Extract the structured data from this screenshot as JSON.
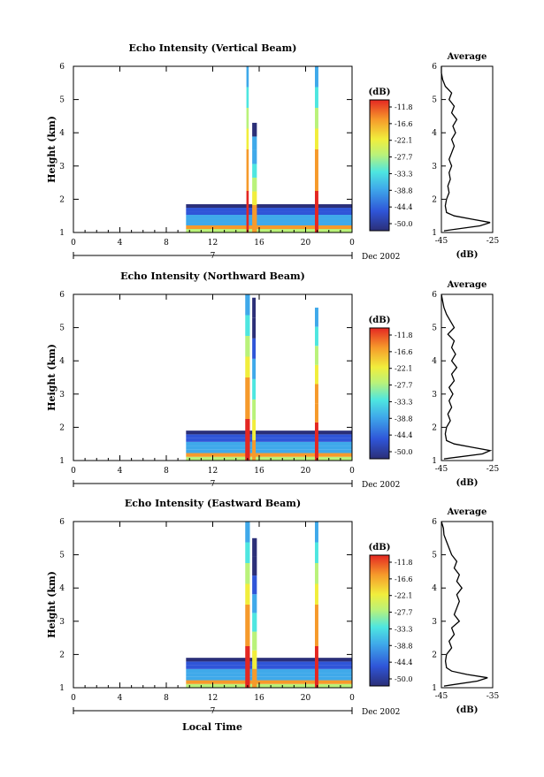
{
  "figure": {
    "xlabel_bottom": "Local Time"
  },
  "chart_data": [
    {
      "type": "heatmap",
      "title": "Echo Intensity (Vertical Beam)",
      "xlabel": "",
      "ylabel": "Height (km)",
      "xlim": [
        0,
        24
      ],
      "ylim": [
        1,
        6
      ],
      "xticks": [
        "0",
        "4",
        "8",
        "12",
        "16",
        "20",
        "0"
      ],
      "yticks": [
        "1",
        "2",
        "3",
        "4",
        "5",
        "6"
      ],
      "day_label": "7",
      "month_label": "Dec 2002",
      "colorbar": {
        "unit": "(dB)",
        "ticks": [
          "-11.8",
          "-16.6",
          "-22.1",
          "-27.7",
          "-33.3",
          "-38.8",
          "-44.4",
          "-50.0"
        ]
      },
      "echo_columns": [
        {
          "start_hr": 9.7,
          "end_hr": 24.0,
          "top_km": 1.85,
          "peak_db": -40
        },
        {
          "start_hr": 14.9,
          "end_hr": 15.1,
          "top_km": 6.0,
          "peak_db": -12
        },
        {
          "start_hr": 15.4,
          "end_hr": 15.8,
          "top_km": 4.3,
          "peak_db": -20
        },
        {
          "start_hr": 20.8,
          "end_hr": 21.1,
          "top_km": 6.0,
          "peak_db": -12
        }
      ],
      "profile": {
        "title": "Average",
        "xlabel": "(dB)",
        "xlim": [
          -45,
          -25
        ],
        "xticks": [
          "-45",
          "-25"
        ],
        "ylim": [
          1,
          6
        ],
        "yticks": [
          "1",
          "2",
          "3",
          "4",
          "5",
          "6"
        ],
        "height_km": [
          1.05,
          1.2,
          1.3,
          1.4,
          1.5,
          1.6,
          1.8,
          2.0,
          2.2,
          2.4,
          2.6,
          2.8,
          3.0,
          3.2,
          3.4,
          3.6,
          3.8,
          4.0,
          4.2,
          4.4,
          4.6,
          4.8,
          5.0,
          5.2,
          5.4,
          5.6,
          5.8,
          6.0
        ],
        "avg_db": [
          -44,
          -30,
          -26,
          -33,
          -40,
          -43,
          -43.5,
          -43,
          -42,
          -42.5,
          -41.5,
          -42,
          -41,
          -42,
          -41,
          -40,
          -41,
          -39.5,
          -40.5,
          -39,
          -41,
          -40,
          -42,
          -41,
          -43.5,
          -44.5,
          -45,
          -45
        ]
      }
    },
    {
      "type": "heatmap",
      "title": "Echo Intensity (Northward Beam)",
      "xlabel": "",
      "ylabel": "Height (km)",
      "xlim": [
        0,
        24
      ],
      "ylim": [
        1,
        6
      ],
      "xticks": [
        "0",
        "4",
        "8",
        "12",
        "16",
        "20",
        "0"
      ],
      "yticks": [
        "1",
        "2",
        "3",
        "4",
        "5",
        "6"
      ],
      "day_label": "7",
      "month_label": "Dec 2002",
      "colorbar": {
        "unit": "(dB)",
        "ticks": [
          "-11.8",
          "-16.6",
          "-22.1",
          "-27.7",
          "-33.3",
          "-38.8",
          "-44.4",
          "-50.0"
        ]
      },
      "echo_columns": [
        {
          "start_hr": 9.7,
          "end_hr": 24.0,
          "top_km": 1.9,
          "peak_db": -40
        },
        {
          "start_hr": 14.8,
          "end_hr": 15.2,
          "top_km": 6.0,
          "peak_db": -12
        },
        {
          "start_hr": 15.4,
          "end_hr": 15.7,
          "top_km": 5.9,
          "peak_db": -25
        },
        {
          "start_hr": 20.8,
          "end_hr": 21.1,
          "top_km": 5.6,
          "peak_db": -12
        }
      ],
      "profile": {
        "title": "Average",
        "xlabel": "(dB)",
        "xlim": [
          -45,
          -25
        ],
        "xticks": [
          "-45",
          "-25"
        ],
        "ylim": [
          1,
          6
        ],
        "yticks": [
          "1",
          "2",
          "3",
          "4",
          "5",
          "6"
        ],
        "height_km": [
          1.05,
          1.2,
          1.3,
          1.4,
          1.5,
          1.6,
          1.8,
          2.0,
          2.2,
          2.4,
          2.6,
          2.8,
          3.0,
          3.2,
          3.4,
          3.6,
          3.8,
          4.0,
          4.2,
          4.4,
          4.6,
          4.8,
          5.0,
          5.2,
          5.4,
          5.6,
          5.8,
          6.0
        ],
        "avg_db": [
          -44,
          -29,
          -26,
          -33,
          -40,
          -43,
          -43.5,
          -43,
          -41.5,
          -42.5,
          -41,
          -42,
          -40.5,
          -42,
          -40,
          -41,
          -39,
          -41,
          -39.5,
          -41,
          -40,
          -42.5,
          -40,
          -41.5,
          -43,
          -44,
          -44.5,
          -45
        ]
      }
    },
    {
      "type": "heatmap",
      "title": "Echo Intensity (Eastward Beam)",
      "xlabel": "Local Time",
      "ylabel": "Height (km)",
      "xlim": [
        0,
        24
      ],
      "ylim": [
        1,
        6
      ],
      "xticks": [
        "0",
        "4",
        "8",
        "12",
        "16",
        "20",
        "0"
      ],
      "yticks": [
        "1",
        "2",
        "3",
        "4",
        "5",
        "6"
      ],
      "day_label": "7",
      "month_label": "Dec 2002",
      "colorbar": {
        "unit": "(dB)",
        "ticks": [
          "-11.8",
          "-16.6",
          "-22.1",
          "-27.7",
          "-33.3",
          "-38.8",
          "-44.4",
          "-50.0"
        ]
      },
      "echo_columns": [
        {
          "start_hr": 9.7,
          "end_hr": 24.0,
          "top_km": 1.9,
          "peak_db": -40
        },
        {
          "start_hr": 14.8,
          "end_hr": 15.2,
          "top_km": 6.0,
          "peak_db": -12
        },
        {
          "start_hr": 15.4,
          "end_hr": 15.8,
          "top_km": 5.5,
          "peak_db": -25
        },
        {
          "start_hr": 20.8,
          "end_hr": 21.1,
          "top_km": 6.0,
          "peak_db": -12
        }
      ],
      "profile": {
        "title": "Average",
        "xlabel": "(dB)",
        "xlim": [
          -45,
          -35
        ],
        "xticks": [
          "-45",
          "-35"
        ],
        "ylim": [
          1,
          6
        ],
        "yticks": [
          "1",
          "2",
          "3",
          "4",
          "5",
          "6"
        ],
        "height_km": [
          1.05,
          1.2,
          1.3,
          1.4,
          1.5,
          1.6,
          1.8,
          2.0,
          2.2,
          2.4,
          2.6,
          2.8,
          3.0,
          3.2,
          3.4,
          3.6,
          3.8,
          4.0,
          4.2,
          4.4,
          4.6,
          4.8,
          5.0,
          5.2,
          5.4,
          5.6,
          5.8,
          6.0
        ],
        "avg_db": [
          -44.5,
          -38,
          -36,
          -40,
          -43,
          -44,
          -44.2,
          -44,
          -43,
          -43.5,
          -42.5,
          -43,
          -41.5,
          -42.5,
          -42,
          -41.5,
          -42,
          -41,
          -42,
          -41.5,
          -42.5,
          -42,
          -43,
          -43.5,
          -44,
          -44.5,
          -44.6,
          -45
        ]
      }
    }
  ]
}
